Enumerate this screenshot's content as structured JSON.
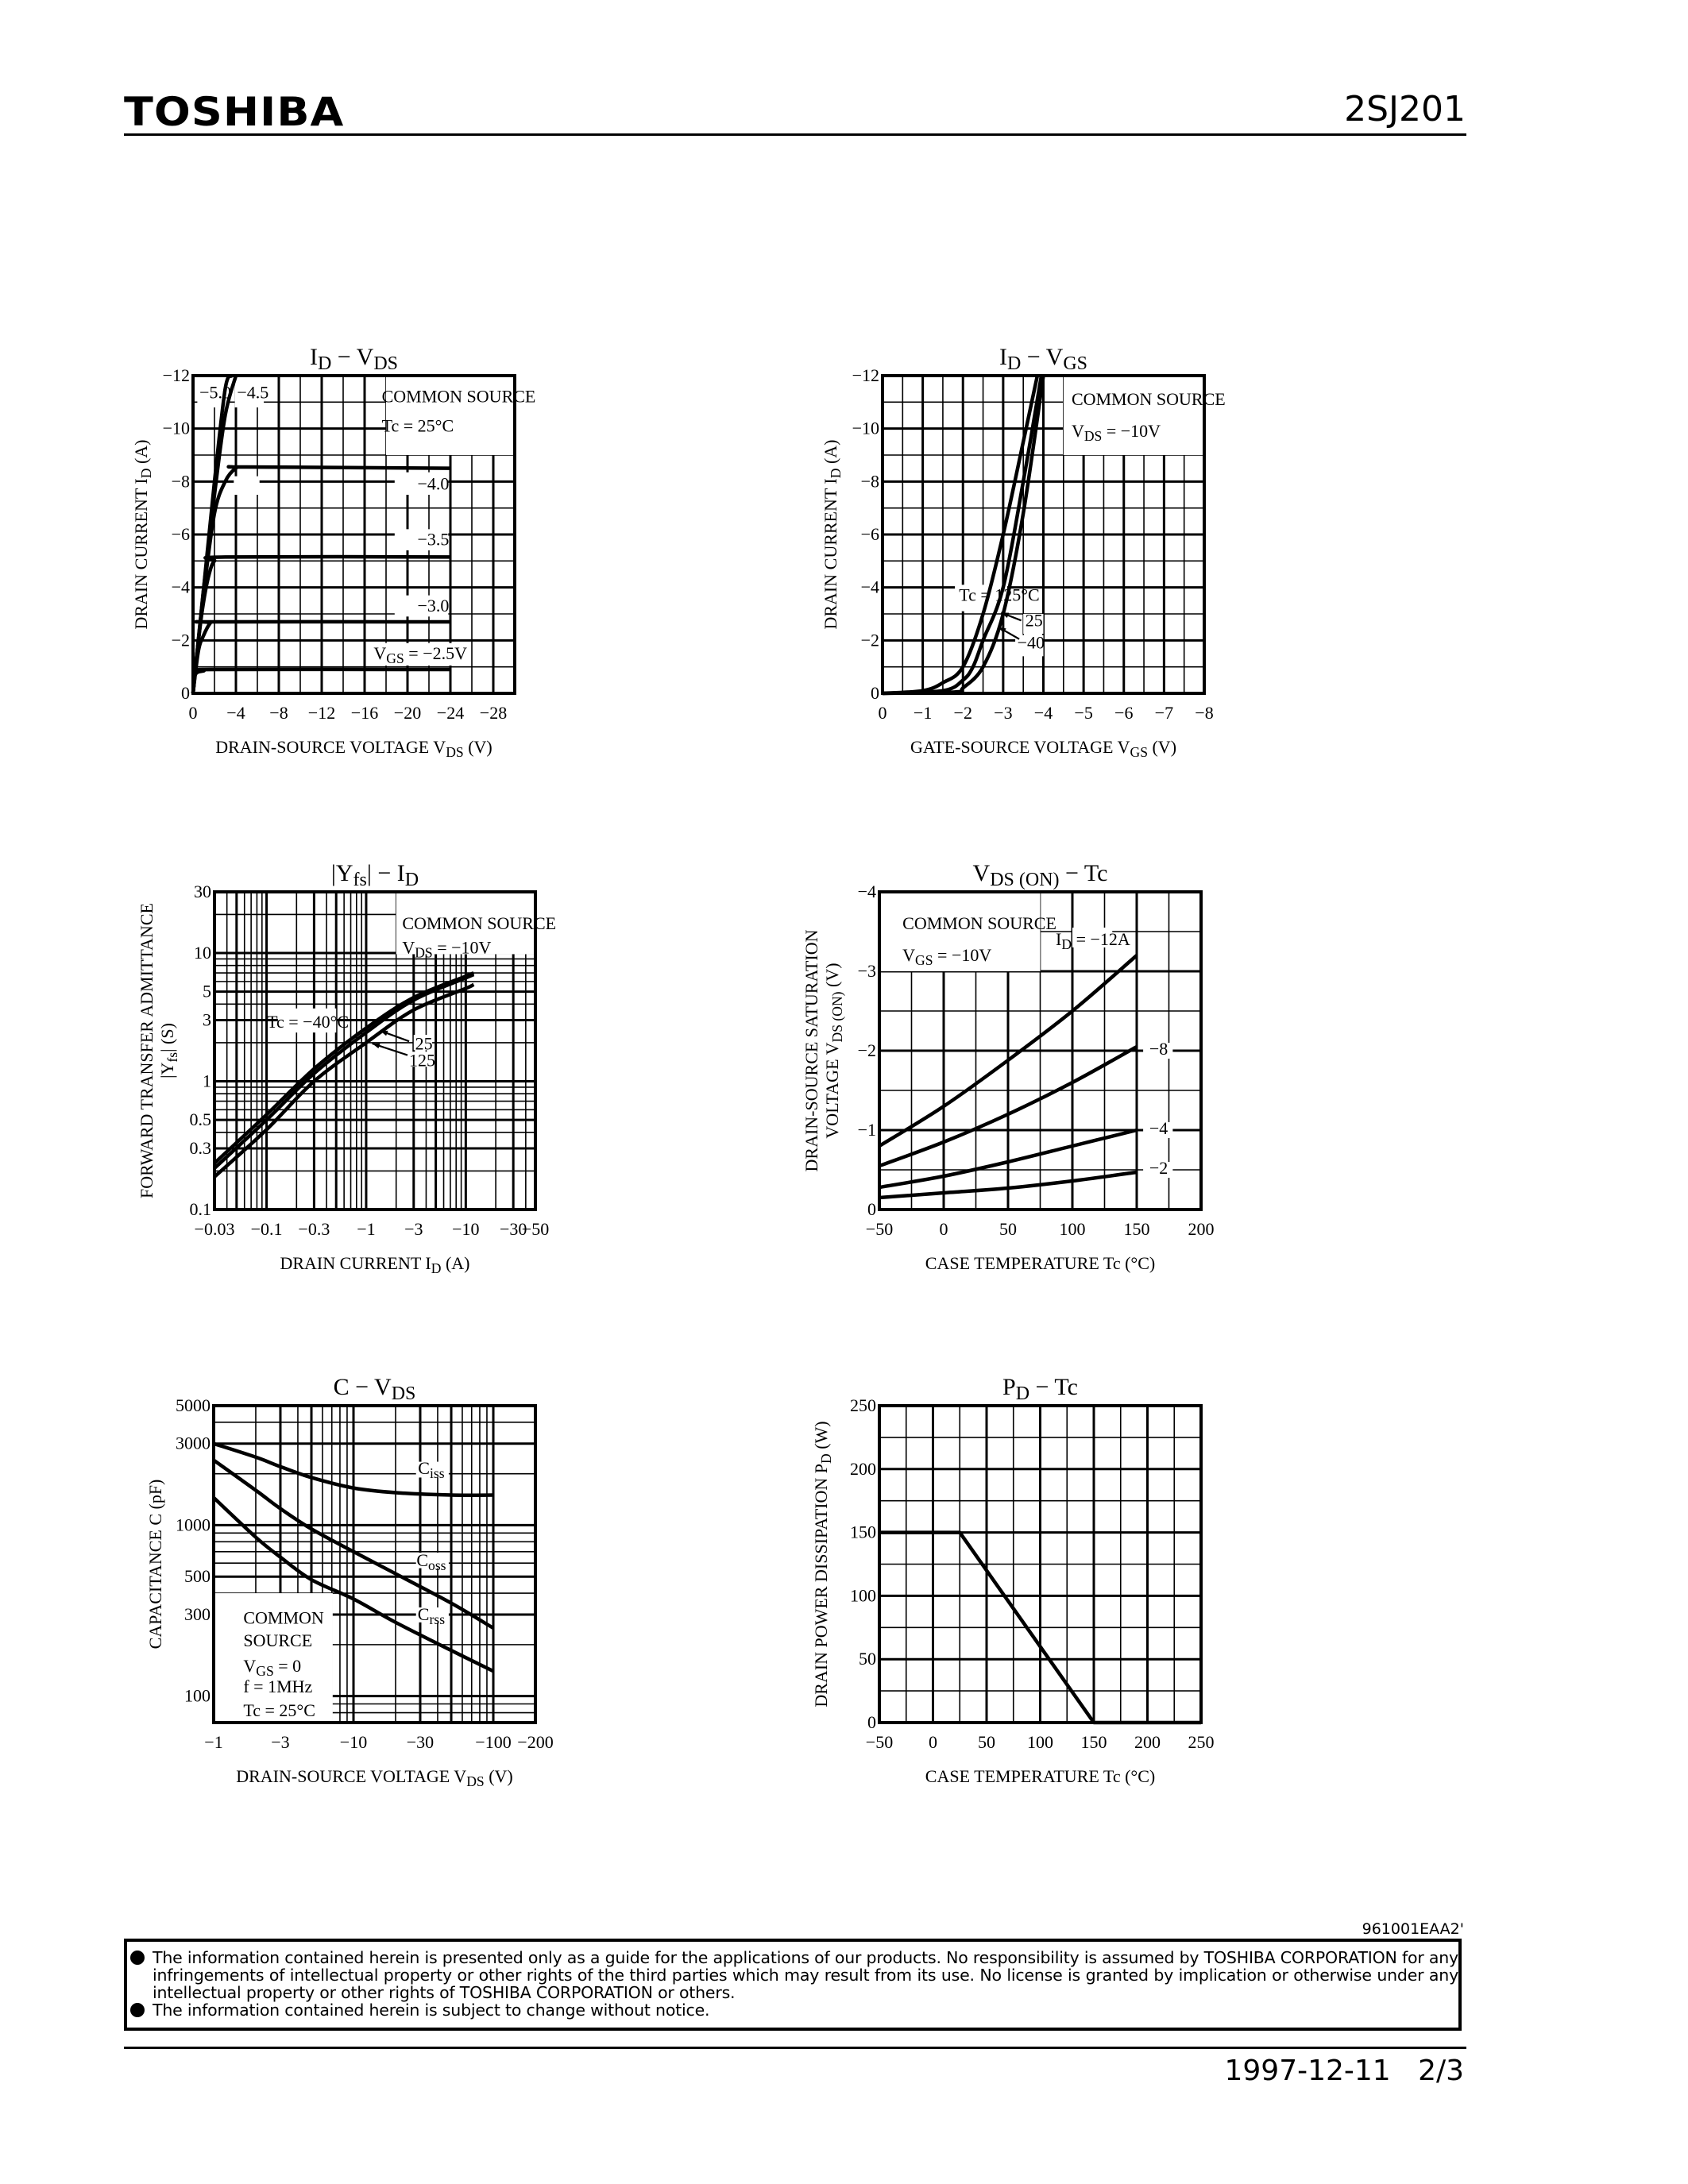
{
  "header": {
    "logo": "TOSHIBA",
    "part_number": "2SJ201"
  },
  "footer": {
    "doc_code": "961001EAA2'",
    "notices": [
      "The information contained herein is presented only as a guide for the applications of our products. No responsibility is assumed by TOSHIBA CORPORATION for any infringements of intellectual property or other rights of the third parties which may result from its use. No license is granted by implication or otherwise under any intellectual property or other rights of TOSHIBA CORPORATION or others.",
      "The information contained herein is subject to change without notice."
    ],
    "date": "1997-12-11",
    "page": "2/3"
  },
  "chart_data": [
    {
      "type": "line",
      "title": "I{D} − V{DS}",
      "xlabel": "DRAIN-SOURCE VOLTAGE   V{DS}   (V)",
      "ylabel": [
        "DRAIN CURRENT   I{D}   (A)"
      ],
      "xscale": "linear",
      "yscale": "linear",
      "xlim": [
        0,
        -30
      ],
      "ylim": [
        0,
        -12
      ],
      "x_ticks": [
        "0",
        "−4",
        "−8",
        "−12",
        "−16",
        "−20",
        "−24",
        "−28"
      ],
      "y_ticks": [
        "0",
        "−2",
        "−4",
        "−6",
        "−8",
        "−10",
        "−12"
      ],
      "grid": true,
      "annotations": [
        "COMMON SOURCE",
        "Tc = 25°C",
        "−5.0",
        "−4.5",
        "−4.0",
        "−3.5",
        "−3.0",
        "V{GS} = −2.5V"
      ],
      "series": [
        {
          "name": "−2.5",
          "x": [
            0,
            -0.2,
            -1,
            -2,
            -24
          ],
          "y": [
            0,
            -0.7,
            -0.85,
            -0.9,
            -0.9
          ]
        },
        {
          "name": "−3.0",
          "x": [
            0,
            -0.5,
            -1,
            -1.6,
            -2,
            -24
          ],
          "y": [
            0,
            -1.6,
            -2.2,
            -2.65,
            -2.7,
            -2.7
          ]
        },
        {
          "name": "−3.5",
          "x": [
            0,
            -0.5,
            -1,
            -1.5,
            -2,
            -3,
            -24
          ],
          "y": [
            0,
            -2.0,
            -3.5,
            -4.5,
            -5.0,
            -5.15,
            -5.15
          ]
        },
        {
          "name": "−4.0",
          "x": [
            0,
            -1,
            -2,
            -3,
            -4,
            -5,
            -24
          ],
          "y": [
            0,
            -3.8,
            -6.8,
            -8.0,
            -8.5,
            -8.55,
            -8.5
          ]
        },
        {
          "name": "−4.5",
          "x": [
            0,
            -1,
            -2,
            -3,
            -4
          ],
          "y": [
            0,
            -4,
            -7.5,
            -10.5,
            -12
          ]
        },
        {
          "name": "−5.0",
          "x": [
            0,
            -1,
            -2,
            -3,
            -3.6
          ],
          "y": [
            0,
            -4,
            -8,
            -11.5,
            -12
          ]
        }
      ]
    },
    {
      "type": "line",
      "title": "I{D} − V{GS}",
      "xlabel": "GATE-SOURCE VOLTAGE   V{GS}   (V)",
      "ylabel": [
        "DRAIN CURRENT   I{D}   (A)"
      ],
      "xscale": "linear",
      "yscale": "linear",
      "xlim": [
        0,
        -8
      ],
      "ylim": [
        0,
        -12
      ],
      "x_ticks": [
        "0",
        "−1",
        "−2",
        "−3",
        "−4",
        "−5",
        "−6",
        "−7",
        "−8"
      ],
      "y_ticks": [
        "0",
        "−2",
        "−4",
        "−6",
        "−8",
        "−10",
        "−12"
      ],
      "grid": true,
      "annotations": [
        "COMMON SOURCE",
        "V{DS} = −10V",
        "Tc = 125°C",
        "25",
        "−40"
      ],
      "series": [
        {
          "name": "Tc = 125°C",
          "x": [
            0,
            -1,
            -1.5,
            -2,
            -2.5,
            -3,
            -3.5,
            -3.85
          ],
          "y": [
            0,
            -0.1,
            -0.4,
            -1,
            -3,
            -6,
            -9.5,
            -12
          ]
        },
        {
          "name": "25",
          "x": [
            0,
            -1.5,
            -2,
            -2.25,
            -2.5,
            -3,
            -3.5,
            -3.95
          ],
          "y": [
            0,
            -0.1,
            -0.5,
            -1,
            -2,
            -4,
            -8,
            -12
          ]
        },
        {
          "name": "−40",
          "x": [
            0,
            -1.8,
            -2,
            -2.5,
            -3,
            -3.5,
            -4
          ],
          "y": [
            0,
            -0.05,
            -0.2,
            -1,
            -3,
            -6.8,
            -12
          ]
        }
      ]
    },
    {
      "type": "line",
      "title": "|Y{fs}| − I{D}",
      "xlabel": "DRAIN CURRENT   I{D}   (A)",
      "ylabel": [
        "FORWARD TRANSFER ADMITTANCE",
        "|Y{fs}|   (S)"
      ],
      "xscale": "log",
      "yscale": "log",
      "xlim": [
        -0.03,
        -50
      ],
      "ylim": [
        0.1,
        30
      ],
      "x_ticks": [
        "−0.03",
        "−0.1",
        "−0.3",
        "−1",
        "−3",
        "−10",
        "−30",
        "−50"
      ],
      "y_ticks": [
        "0.1",
        "0.3",
        "0.5",
        "1",
        "3",
        "5",
        "10",
        "30"
      ],
      "grid": true,
      "annotations": [
        "COMMON SOURCE",
        "V{DS} = −10V",
        "Tc = −40°C",
        "25",
        "125"
      ],
      "series": [
        {
          "name": "Tc = −40°C",
          "x": [
            -0.03,
            -0.1,
            -0.3,
            -1,
            -3,
            -10,
            -12
          ],
          "y": [
            0.23,
            0.55,
            1.25,
            2.6,
            4.5,
            6.6,
            7.0
          ]
        },
        {
          "name": "25",
          "x": [
            -0.03,
            -0.1,
            -0.3,
            -1,
            -3,
            -10,
            -12
          ],
          "y": [
            0.21,
            0.5,
            1.15,
            2.4,
            4.3,
            6.4,
            6.8
          ]
        },
        {
          "name": "125",
          "x": [
            -0.03,
            -0.1,
            -0.3,
            -1,
            -3,
            -10,
            -12
          ],
          "y": [
            0.18,
            0.42,
            1.0,
            2.0,
            3.6,
            5.3,
            5.7
          ]
        }
      ]
    },
    {
      "type": "line",
      "title": "V{DS (ON)} − Tc",
      "xlabel": "CASE TEMPERATURE   Tc   (°C)",
      "ylabel": [
        "DRAIN-SOURCE SATURATION",
        "VOLTAGE   V{DS (ON)}   (V)"
      ],
      "xscale": "linear",
      "yscale": "linear",
      "xlim": [
        -50,
        200
      ],
      "ylim": [
        0,
        -4
      ],
      "x_ticks": [
        "−50",
        "0",
        "50",
        "100",
        "150",
        "200"
      ],
      "y_ticks": [
        "0",
        "−1",
        "−2",
        "−3",
        "−4"
      ],
      "grid": true,
      "annotations": [
        "COMMON SOURCE",
        "V{GS} = −10V",
        "I{D} = −12A",
        "−8",
        "−4",
        "−2"
      ],
      "series": [
        {
          "name": "I{D} = −12A",
          "x": [
            -50,
            0,
            50,
            100,
            150
          ],
          "y": [
            -0.8,
            -1.3,
            -1.88,
            -2.5,
            -3.2
          ]
        },
        {
          "name": "−8",
          "x": [
            -50,
            0,
            50,
            100,
            150
          ],
          "y": [
            -0.55,
            -0.85,
            -1.2,
            -1.6,
            -2.05
          ]
        },
        {
          "name": "−4",
          "x": [
            -50,
            0,
            50,
            100,
            150
          ],
          "y": [
            -0.28,
            -0.42,
            -0.6,
            -0.8,
            -1.0
          ]
        },
        {
          "name": "−2",
          "x": [
            -50,
            0,
            50,
            100,
            150
          ],
          "y": [
            -0.15,
            -0.21,
            -0.27,
            -0.36,
            -0.47
          ]
        }
      ]
    },
    {
      "type": "line",
      "title": "C − V{DS}",
      "xlabel": "DRAIN-SOURCE VOLTAGE   V{DS}   (V)",
      "ylabel": [
        "CAPACITANCE   C   (pF)"
      ],
      "xscale": "log",
      "yscale": "log",
      "xlim": [
        -1,
        -200
      ],
      "ylim": [
        70,
        5000
      ],
      "x_ticks": [
        "−1",
        "−3",
        "−10",
        "−30",
        "−100",
        "−200"
      ],
      "y_ticks": [
        "100",
        "300",
        "500",
        "1000",
        "3000",
        "5000"
      ],
      "grid": true,
      "annotations": [
        "C{iss}",
        "C{oss}",
        "C{rss}",
        "COMMON",
        "SOURCE",
        "V{GS} = 0",
        "f = 1MHz",
        "Tc = 25°C"
      ],
      "series": [
        {
          "name": "C{iss}",
          "x": [
            -1,
            -2,
            -3,
            -5,
            -10,
            -20,
            -50,
            -100
          ],
          "y": [
            3000,
            2500,
            2200,
            1900,
            1650,
            1550,
            1500,
            1500
          ]
        },
        {
          "name": "C{oss}",
          "x": [
            -1,
            -2,
            -3,
            -5,
            -10,
            -20,
            -50,
            -100
          ],
          "y": [
            2400,
            1600,
            1250,
            950,
            700,
            520,
            350,
            250
          ]
        },
        {
          "name": "C{rss}",
          "x": [
            -1,
            -2,
            -3,
            -5,
            -10,
            -20,
            -50,
            -100
          ],
          "y": [
            1450,
            850,
            650,
            480,
            370,
            270,
            185,
            140
          ]
        }
      ]
    },
    {
      "type": "line",
      "title": "P{D} − Tc",
      "xlabel": "CASE TEMPERATURE   Tc   (°C)",
      "ylabel": [
        "DRAIN POWER DISSIPATION   P{D}   (W)"
      ],
      "xscale": "linear",
      "yscale": "linear",
      "xlim": [
        -50,
        250
      ],
      "ylim": [
        0,
        250
      ],
      "x_ticks": [
        "−50",
        "0",
        "50",
        "100",
        "150",
        "200",
        "250"
      ],
      "y_ticks": [
        "0",
        "50",
        "100",
        "150",
        "200",
        "250"
      ],
      "grid": true,
      "annotations": [],
      "series": [
        {
          "x": [
            -50,
            25,
            150,
            250
          ],
          "y": [
            150,
            150,
            0,
            0
          ]
        }
      ]
    }
  ]
}
